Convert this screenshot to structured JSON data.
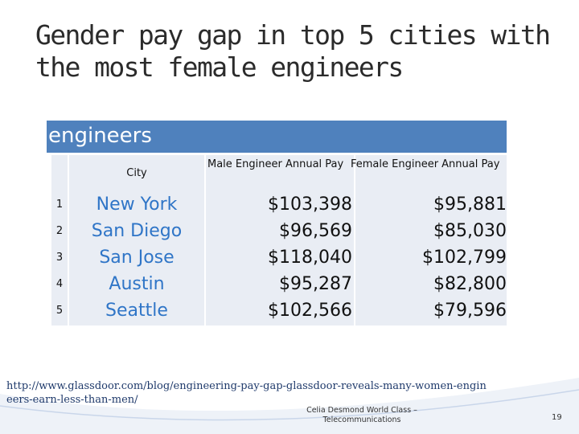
{
  "slide": {
    "title": "Gender pay gap in top 5 cities with the most female engineers",
    "band_text": "engineers"
  },
  "table": {
    "headers": {
      "city": "City",
      "male": "Male Engineer Annual Pay",
      "female": "Female Engineer Annual Pay"
    },
    "rows": [
      {
        "num": "1",
        "city": "New York",
        "male": "$103,398",
        "female": "$95,881"
      },
      {
        "num": "2",
        "city": "San Diego",
        "male": "$96,569",
        "female": "$85,030"
      },
      {
        "num": "3",
        "city": "San Jose",
        "male": "$118,040",
        "female": "$102,799"
      },
      {
        "num": "4",
        "city": "Austin",
        "male": "$95,287",
        "female": "$82,800"
      },
      {
        "num": "5",
        "city": "Seattle",
        "male": "$102,566",
        "female": "$79,596"
      }
    ]
  },
  "footer": {
    "source_url": "http://www.glassdoor.com/blog/engineering-pay-gap-glassdoor-reveals-many-women-engineers-earn-less-than-men/",
    "credit": "Celia Desmond World Class – Telecommunications",
    "page_number": "19"
  },
  "colors": {
    "band": "#4f81bd",
    "city_text": "#2f75c7",
    "cell_bg": "#e9edf4"
  }
}
